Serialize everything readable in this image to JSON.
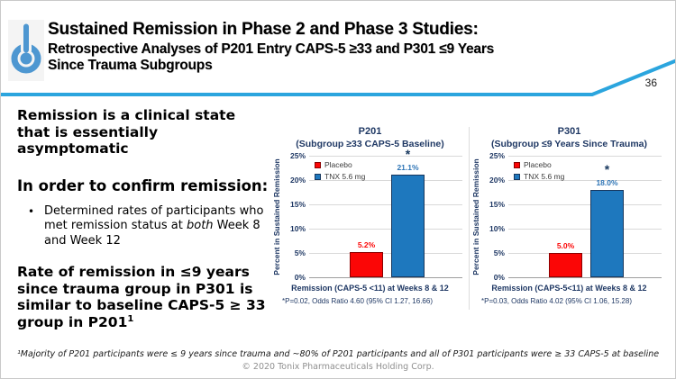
{
  "slide": {
    "number": "36",
    "title_line1": "Sustained Remission in Phase 2 and Phase 3 Studies:",
    "title_line2": "Retrospective Analyses of P201 Entry CAPS-5 ≥33 and P301 ≤9 Years",
    "title_line3": "Since Trauma Subgroups",
    "footnote": "¹Majority of P201 participants were ≤ 9 years since trauma and ~80% of P201 participants and all of P301 participants were ≥ 33 CAPS-5 at baseline",
    "copyright": "© 2020 Tonix Pharmaceuticals Holding Corp.",
    "accent_blue": "#2ba5de",
    "logo_blue": "#4e97d1",
    "navy": "#1f3864"
  },
  "left_column": {
    "statement1": "Remission is a clinical state that is essentially asymptomatic",
    "heading": "In order to confirm remission:",
    "bullet_marker": "•",
    "bullet_pre": "Determined rates of participants who met remission status at ",
    "bullet_italic": "both",
    "bullet_post": " Week 8 and Week 12",
    "statement2": "Rate of remission in ≤9 years since trauma group in P301 is similar to baseline CAPS-5 ≥ 33 group in P201",
    "statement2_sup": "1"
  },
  "chart_data": [
    {
      "type": "bar",
      "title": "P201",
      "subtitle": "(Subgroup ≥33 CAPS-5 Baseline)",
      "ylabel": "Percent in Sustained Remission",
      "xlabel": "Remission (CAPS-5 <11) at Weeks 8 & 12",
      "footnote": "*P=0.02, Odds Ratio 4.60 (95% CI 1.27, 16.66)",
      "ylim": [
        0,
        25
      ],
      "yticks": [
        0,
        5,
        10,
        15,
        20,
        25
      ],
      "ytick_labels": [
        "0%",
        "5%",
        "10%",
        "15%",
        "20%",
        "25%"
      ],
      "grid": true,
      "legend_position": "upper-left",
      "significance_marker": "*",
      "series": [
        {
          "name": "Placebo",
          "value": 5.2,
          "label": "5.2%",
          "color": "#fb0606",
          "border": "#8b0000",
          "label_color": "#fb0606",
          "significant": false
        },
        {
          "name": "TNX 5.6 mg",
          "value": 21.1,
          "label": "21.1%",
          "color": "#1e78be",
          "border": "#17375e",
          "label_color": "#2e75b6",
          "significant": true
        }
      ]
    },
    {
      "type": "bar",
      "title": "P301",
      "subtitle": "(Subgroup ≤9 Years Since Trauma)",
      "ylabel": "Percent in Sustained Remission",
      "xlabel": "Remission (CAPS-5<11) at Weeks 8 & 12",
      "footnote": "*P=0.03, Odds Ratio 4.02 (95% CI 1.06, 15.28)",
      "ylim": [
        0,
        25
      ],
      "yticks": [
        0,
        5,
        10,
        15,
        20,
        25
      ],
      "ytick_labels": [
        "0%",
        "5%",
        "10%",
        "15%",
        "20%",
        "25%"
      ],
      "grid": true,
      "legend_position": "upper-left",
      "significance_marker": "*",
      "series": [
        {
          "name": "Placebo",
          "value": 5.0,
          "label": "5.0%",
          "color": "#fb0606",
          "border": "#8b0000",
          "label_color": "#fb0606",
          "significant": false
        },
        {
          "name": "TNX 5.6 mg",
          "value": 18.0,
          "label": "18.0%",
          "color": "#1e78be",
          "border": "#17375e",
          "label_color": "#2e75b6",
          "significant": true
        }
      ]
    }
  ]
}
